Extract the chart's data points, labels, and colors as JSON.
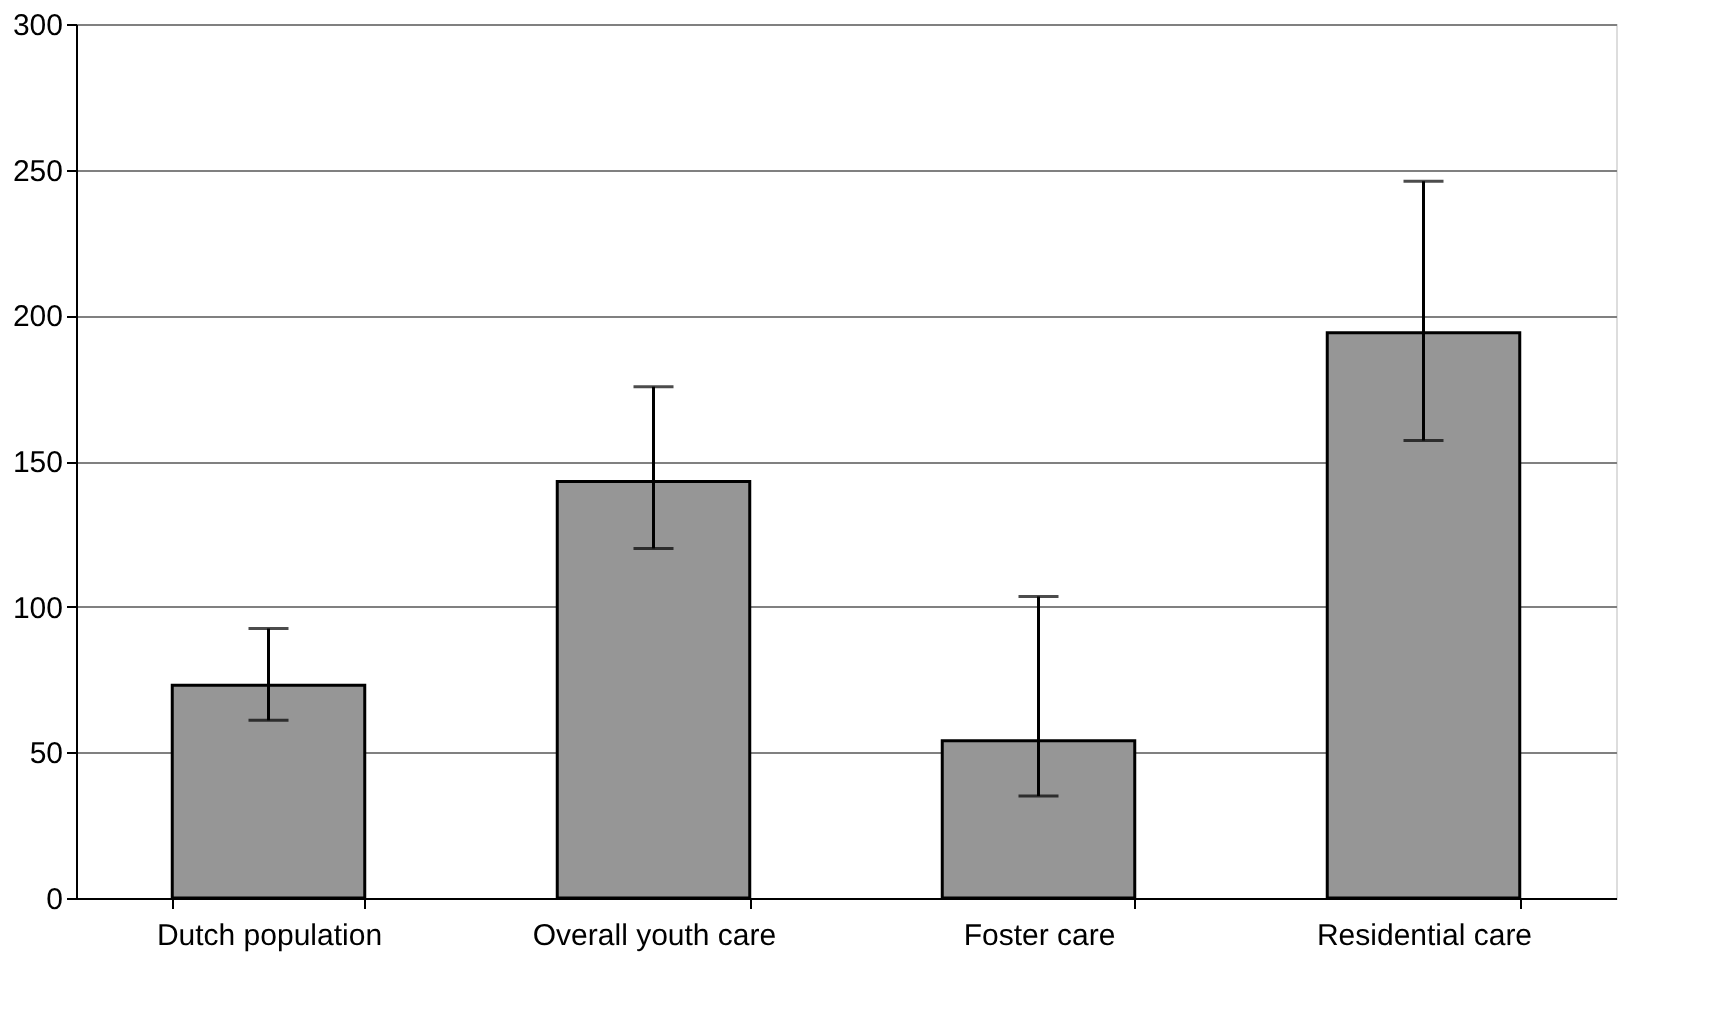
{
  "chart_data": {
    "type": "bar",
    "categories": [
      "Dutch population",
      "Overall youth care",
      "Foster care",
      "Residential care"
    ],
    "values": [
      73,
      143,
      54,
      194
    ],
    "errors": [
      [
        61,
        92.5
      ],
      [
        120,
        175.5
      ],
      [
        35,
        103.5
      ],
      [
        157,
        246
      ]
    ],
    "color": "#969696",
    "ylim": [
      0,
      300
    ],
    "yticks": [
      0,
      50,
      100,
      150,
      200,
      250,
      300
    ],
    "grid": "y"
  }
}
